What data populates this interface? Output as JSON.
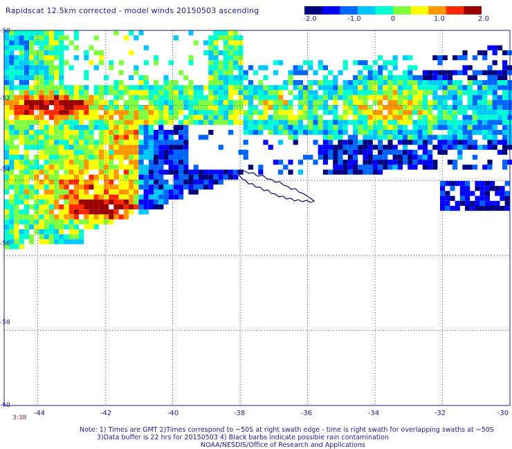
{
  "title": "Rapidscat 12.5km corrected - model winds 20150503 ascending",
  "colorbar": {
    "ticks": [
      "-2.0",
      "-1.0",
      "0",
      "1.0",
      "2.0"
    ],
    "tick_values": [
      -2.0,
      -1.0,
      0,
      1.0,
      2.0
    ],
    "colors": [
      "#00007a",
      "#0000ff",
      "#0064ff",
      "#00c8ff",
      "#00ffd0",
      "#80ff40",
      "#ffff00",
      "#ff9600",
      "#ff2800",
      "#9a0000"
    ]
  },
  "map": {
    "lon_range": [
      -45,
      -30
    ],
    "lat_range": [
      -60,
      -50
    ],
    "lat_labels": [
      "-50",
      "-52",
      "-54",
      "-56",
      "-58",
      "-60"
    ],
    "lon_labels": [
      "-44",
      "-42",
      "-40",
      "-38",
      "-36",
      "-34",
      "-32",
      "-30"
    ],
    "coastline": "South Georgia"
  },
  "time_label": "3:38",
  "notes": {
    "line1": "Note: 1) Times are GMT 2)Times correspond to ~50S at right swath edge - time is right swath for overlapping swaths at ~50S",
    "line2": "3)Data buffer is 22 hrs for 20150503 4) Black barbs indicate possible rain contamination",
    "line3": "NOAA/NESDIS/Office of Research and Applications"
  }
}
